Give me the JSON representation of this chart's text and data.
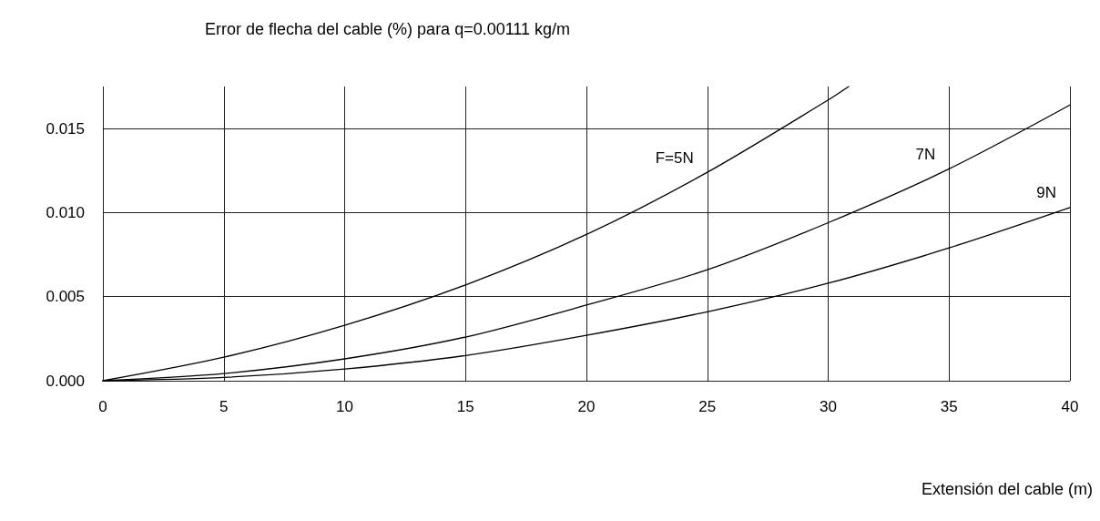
{
  "chart_data": {
    "type": "line",
    "title": "Error de flecha del cable (%) para q=0.00111 kg/m",
    "xlabel": "Extensión del cable (m)",
    "series": [
      {
        "name": "F=5N",
        "color": "#000000",
        "x": [
          0,
          5,
          10,
          15,
          20,
          25,
          30,
          30.85
        ],
        "values": [
          0,
          0.0014,
          0.0033,
          0.0057,
          0.0087,
          0.0124,
          0.0167,
          0.0175
        ]
      },
      {
        "name": "7N",
        "color": "#000000",
        "x": [
          0,
          5,
          10,
          15,
          20,
          25,
          30,
          35,
          40
        ],
        "values": [
          0,
          0.00043,
          0.0013,
          0.0026,
          0.0045,
          0.0066,
          0.0094,
          0.0126,
          0.0164
        ]
      },
      {
        "name": "9N",
        "color": "#000000",
        "x": [
          0,
          5,
          10,
          15,
          20,
          25,
          30,
          35,
          40
        ],
        "values": [
          0,
          0.0002,
          0.0007,
          0.0015,
          0.0027,
          0.0041,
          0.0058,
          0.0079,
          0.0103
        ]
      }
    ],
    "xlim": [
      0,
      40
    ],
    "xticks": [
      0,
      5,
      10,
      15,
      20,
      25,
      30,
      35,
      40
    ],
    "ylim": [
      0,
      0.0175
    ],
    "yticks": [
      {
        "value": 0,
        "label": "0.000"
      },
      {
        "value": 0.005,
        "label": "0.005"
      },
      {
        "value": 0.01,
        "label": "0.010"
      },
      {
        "value": 0.015,
        "label": "0.015"
      }
    ],
    "grid": true,
    "marker": "none",
    "line_style": "solid",
    "legend": false
  }
}
